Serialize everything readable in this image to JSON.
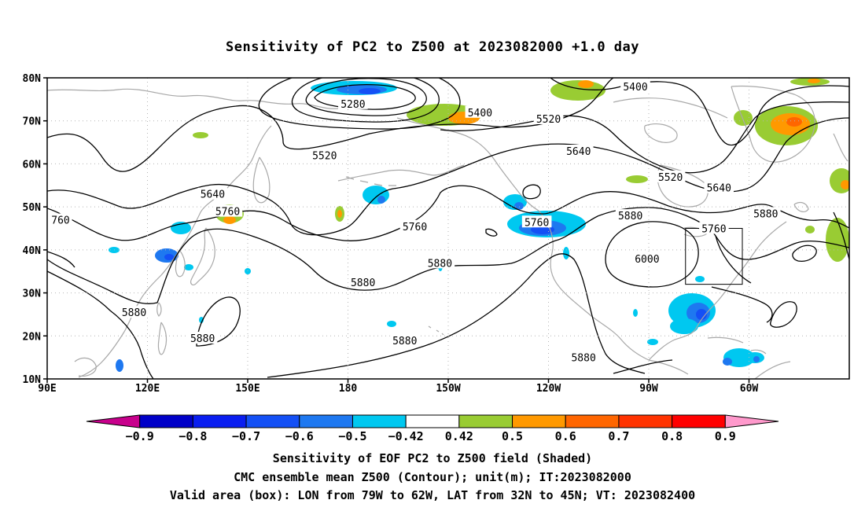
{
  "title": "Sensitivity of PC2 to Z500 at 2023082000 +1.0 day",
  "map": {
    "lat_labels": [
      "80N",
      "70N",
      "60N",
      "50N",
      "40N",
      "30N",
      "20N",
      "10N"
    ],
    "lon_labels": [
      "90E",
      "120E",
      "150E",
      "180",
      "150W",
      "120W",
      "90W",
      "60W"
    ],
    "contour_labels": [
      {
        "text": "5400",
        "lon": 219.5,
        "lat": 72
      },
      {
        "text": "5280",
        "lon": 181.5,
        "lat": 74
      },
      {
        "text": "5400",
        "lon": 266,
        "lat": 78
      },
      {
        "text": "5520",
        "lon": 240,
        "lat": 70.5
      },
      {
        "text": "5520",
        "lon": 173,
        "lat": 62
      },
      {
        "text": "5640",
        "lon": 249,
        "lat": 63
      },
      {
        "text": "5520",
        "lon": 276.5,
        "lat": 57
      },
      {
        "text": "5640",
        "lon": 291,
        "lat": 54.5
      },
      {
        "text": "5640",
        "lon": 139.5,
        "lat": 53
      },
      {
        "text": "5760",
        "lon": 144,
        "lat": 49
      },
      {
        "text": "760",
        "lon": 94,
        "lat": 47
      },
      {
        "text": "5760",
        "lon": 200,
        "lat": 45.5
      },
      {
        "text": "5760",
        "lon": 236.5,
        "lat": 46.5
      },
      {
        "text": "5880",
        "lon": 264.5,
        "lat": 48
      },
      {
        "text": "5760",
        "lon": 289.5,
        "lat": 45
      },
      {
        "text": "5880",
        "lon": 305,
        "lat": 48.5
      },
      {
        "text": "6000",
        "lon": 269.5,
        "lat": 38
      },
      {
        "text": "5880",
        "lon": 207.5,
        "lat": 37
      },
      {
        "text": "5880",
        "lon": 184.5,
        "lat": 32.5
      },
      {
        "text": "5880",
        "lon": 116,
        "lat": 25.5
      },
      {
        "text": "5880",
        "lon": 136.5,
        "lat": 19.5
      },
      {
        "text": "5880",
        "lon": 197,
        "lat": 19
      },
      {
        "text": "5880",
        "lon": 250.5,
        "lat": 15
      }
    ],
    "valid_box": {
      "lon_west": 281,
      "lon_east": 298,
      "lat_south": 32,
      "lat_north": 45
    }
  },
  "colorbar": {
    "tick_labels": [
      "-0.9",
      "-0.8",
      "-0.7",
      "-0.6",
      "-0.5",
      "-0.42",
      "0.42",
      "0.5",
      "0.6",
      "0.7",
      "0.8",
      "0.9"
    ],
    "colors": [
      "#c8008c",
      "#0000c8",
      "#0a1ef0",
      "#1450f5",
      "#1e78f0",
      "#00c8f0",
      "#ffffff",
      "#99cc33",
      "#ff9900",
      "#ff6600",
      "#ff3300",
      "#ff0000",
      "#ff99cc"
    ]
  },
  "captions": {
    "line1": "Sensitivity of EOF PC2 to Z500 field (Shaded)",
    "line2": "CMC ensemble mean Z500 (Contour); unit(m); IT:2023082000",
    "line3": "Valid area (box): LON from 79W to 62W, LAT from 32N to 45N; VT: 2023082400"
  }
}
